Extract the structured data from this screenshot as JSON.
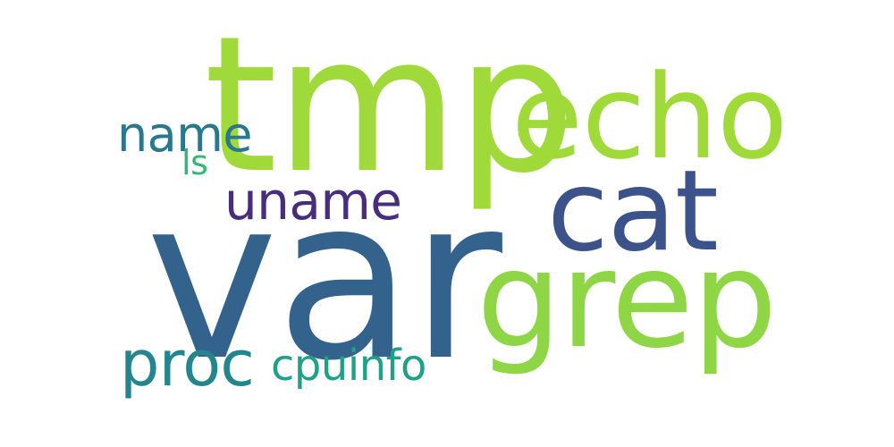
{
  "words": {
    "var": {
      "text": "var",
      "color": "#33638d"
    },
    "tmp": {
      "text": "tmp",
      "color": "#9fda3a"
    },
    "echo": {
      "text": "echo",
      "color": "#a0da39"
    },
    "grep": {
      "text": "grep",
      "color": "#8ed645"
    },
    "cat": {
      "text": "cat",
      "color": "#3b528b"
    },
    "uname": {
      "text": "uname",
      "color": "#472d7b"
    },
    "proc": {
      "text": "proc",
      "color": "#25858e"
    },
    "cpuinfo": {
      "text": "cpuinfo",
      "color": "#1fa187"
    },
    "name": {
      "text": "name",
      "color": "#2a788e"
    },
    "ls": {
      "text": "ls",
      "color": "#35b779"
    }
  }
}
